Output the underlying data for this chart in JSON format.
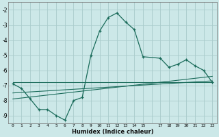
{
  "xlabel": "Humidex (Indice chaleur)",
  "bg_color": "#cce8e8",
  "grid_color": "#aacccc",
  "line_color": "#1a6b5a",
  "xlim": [
    -0.5,
    23.5
  ],
  "ylim": [
    -9.5,
    -1.5
  ],
  "yticks": [
    -9,
    -8,
    -7,
    -6,
    -5,
    -4,
    -3,
    -2
  ],
  "xticks": [
    0,
    1,
    2,
    3,
    4,
    5,
    6,
    7,
    8,
    9,
    10,
    11,
    12,
    13,
    14,
    15,
    17,
    18,
    19,
    20,
    21,
    22,
    23
  ],
  "series1_x": [
    0,
    1,
    2,
    3,
    4,
    5,
    6,
    7,
    8,
    9,
    10,
    11,
    12,
    13,
    14,
    15,
    17,
    18,
    19,
    20,
    21,
    22,
    23
  ],
  "series1_y": [
    -6.9,
    -7.2,
    -7.9,
    -8.6,
    -8.6,
    -9.0,
    -9.3,
    -8.0,
    -7.8,
    -5.0,
    -3.4,
    -2.5,
    -2.2,
    -2.8,
    -3.3,
    -5.1,
    -5.2,
    -5.8,
    -5.6,
    -5.3,
    -5.7,
    -6.0,
    -6.8
  ],
  "series2_x": [
    0,
    23
  ],
  "series2_y": [
    -6.8,
    -6.8
  ],
  "series3_x": [
    0,
    23
  ],
  "series3_y": [
    -7.5,
    -6.7
  ],
  "series4_x": [
    0,
    23
  ],
  "series4_y": [
    -7.9,
    -6.4
  ]
}
